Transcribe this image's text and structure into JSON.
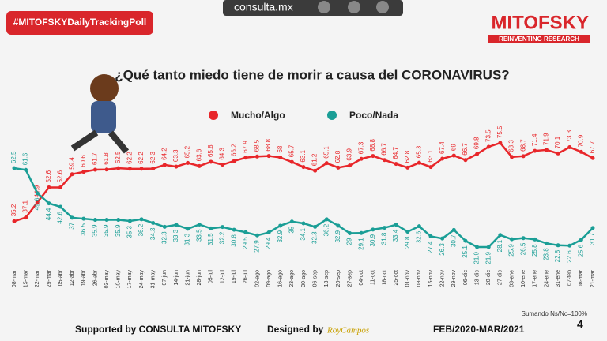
{
  "chart_data": {
    "type": "line",
    "badge": "#MITOFSKYDailyTrackingPoll",
    "site": "consulta.mx",
    "brand": "MITOFSKY",
    "tagline": "REINVENTING RESEARCH",
    "title": "¿Qué tanto miedo tiene de morir a causa del CORONAVIRUS?",
    "note": "Sumando Ns/Nc=100%",
    "footer_left": "Supported by  CONSULTA  MITOFSKY",
    "footer_designed": "Designed by",
    "footer_designer": "RoyCampos",
    "footer_period": "FEB/2020-MAR/2021",
    "page_number": "4",
    "categories": [
      "08-mar",
      "15-mar",
      "22-mar",
      "29-mar",
      "05-abr",
      "12-abr",
      "19-abr",
      "26-abr",
      "03-may",
      "10-may",
      "17-may",
      "24-may",
      "31-may",
      "07-jun",
      "14-jun",
      "21-jun",
      "28-jun",
      "05-jul",
      "12-jul",
      "19-jul",
      "26-jul",
      "02-ago",
      "09-ago",
      "16-ago",
      "23-ago",
      "30-ago",
      "06-sep",
      "13-sep",
      "20-sep",
      "27-sep",
      "04-oct",
      "11-oct",
      "18-oct",
      "25-oct",
      "01-nov",
      "08-nov",
      "15-nov",
      "22-nov",
      "29-nov",
      "06-dic",
      "13-dic",
      "20-dic",
      "27-dic",
      "03-ene",
      "10-ene",
      "17-ene",
      "24-ene",
      "31-ene",
      "07-feb",
      "08-mar",
      "21-mar"
    ],
    "series": [
      {
        "name": "Mucho/Algo",
        "color": "#e8262a",
        "values": [
          35.2,
          37.1,
          44.9,
          52.6,
          52.6,
          59.4,
          60.6,
          61.7,
          61.8,
          62.5,
          62.2,
          62.2,
          62.3,
          64.2,
          63.3,
          65.2,
          63.6,
          65.8,
          64.3,
          66.2,
          67.9,
          68.5,
          68.8,
          68.0,
          65.7,
          63.1,
          61.2,
          65.1,
          62.8,
          63.9,
          67.3,
          68.8,
          66.7,
          64.7,
          62.8,
          65.3,
          63.1,
          67.4,
          69.0,
          66.7,
          69.8,
          73.5,
          75.5,
          68.3,
          68.7,
          71.4,
          71.9,
          70.1,
          73.3,
          70.9,
          67.7
        ]
      },
      {
        "name": "Poco/Nada",
        "color": "#1a9e96",
        "values": [
          62.5,
          61.6,
          49.6,
          44.4,
          42.6,
          37.0,
          36.5,
          35.9,
          35.9,
          35.9,
          35.3,
          36.2,
          34.3,
          32.3,
          33.3,
          31.3,
          33.5,
          31.5,
          32.2,
          30.8,
          29.5,
          27.9,
          29.4,
          32.9,
          35.0,
          34.1,
          32.3,
          36.2,
          32.9,
          29.0,
          29.1,
          30.9,
          31.8,
          33.4,
          29.8,
          32.6,
          27.4,
          26.3,
          30.7,
          25.1,
          21.9,
          21.9,
          28.1,
          25.9,
          26.5,
          25.8,
          23.8,
          22.8,
          22.6,
          25.6,
          31.7
        ]
      }
    ],
    "ylim": [
      15,
      80
    ]
  }
}
